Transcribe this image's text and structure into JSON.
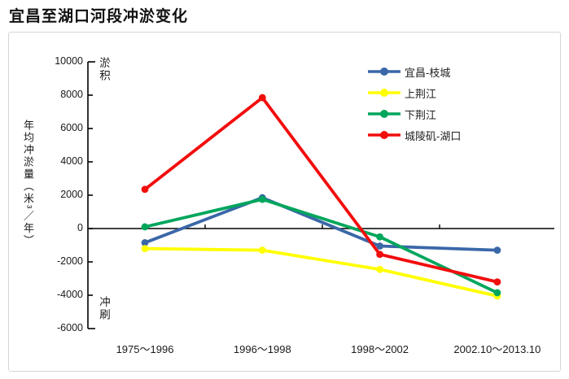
{
  "title": "宜昌至湖口河段冲淤变化",
  "chart_data": {
    "type": "line",
    "categories": [
      "1975～1996",
      "1996～1998",
      "1998～2002",
      "2002.10～2013.10"
    ],
    "series": [
      {
        "name": "宜昌-枝城",
        "color": "#3a67a8",
        "values": [
          -850,
          1850,
          -1050,
          -1300
        ]
      },
      {
        "name": "上荆江",
        "color": "#ffff00",
        "values": [
          -1200,
          -1300,
          -2450,
          -4050
        ]
      },
      {
        "name": "下荆江",
        "color": "#00a65c",
        "values": [
          100,
          1750,
          -500,
          -3850
        ]
      },
      {
        "name": "城陵矶-湖口",
        "color": "#f20d0d",
        "values": [
          2350,
          7850,
          -1550,
          -3200
        ]
      }
    ],
    "xlabel": "",
    "ylabel": "年均冲淤量（米³／年）",
    "ylim": [
      -6000,
      10000
    ],
    "yticks": [
      10000,
      8000,
      6000,
      4000,
      2000,
      0,
      -2000,
      -4000,
      -6000
    ],
    "grid": false,
    "legend_position": "top-right",
    "annotations": [
      {
        "text": "淤积",
        "position": "top-left-of-plot"
      },
      {
        "text": "冲刷",
        "position": "bottom-left-of-plot"
      }
    ]
  }
}
